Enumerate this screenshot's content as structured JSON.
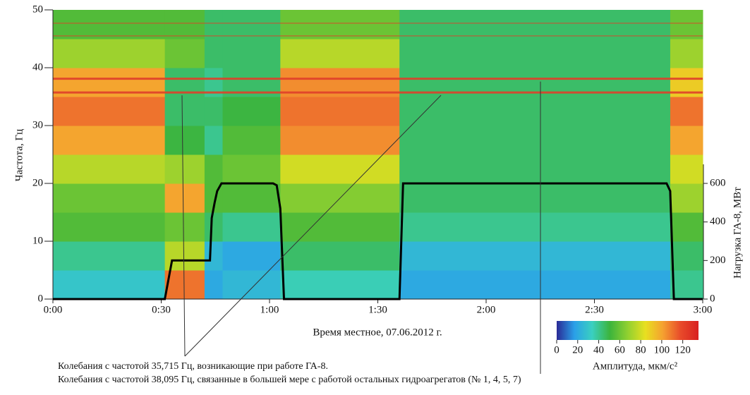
{
  "chart_data": {
    "type": "spectrogram",
    "ylabel": "Частота, Гц",
    "y2label": "Нагрузка ГА-8, МВт",
    "xlabel": "Время местное, 07.06.2012 г.",
    "xlim": [
      0,
      180
    ],
    "xticks": [
      {
        "value": 0,
        "label": "0:00"
      },
      {
        "value": 30,
        "label": "0:30"
      },
      {
        "value": 60,
        "label": "1:00"
      },
      {
        "value": 90,
        "label": "1:30"
      },
      {
        "value": 120,
        "label": "2:00"
      },
      {
        "value": 150,
        "label": "2:30"
      },
      {
        "value": 180,
        "label": "3:00"
      }
    ],
    "ylim": [
      0,
      50
    ],
    "yticks": [
      0,
      10,
      20,
      30,
      40,
      50
    ],
    "y2lim": [
      0,
      1500
    ],
    "y2ticks": [
      0,
      200,
      400,
      600
    ],
    "spectrogram": {
      "time_edges": [
        0,
        31,
        42,
        47,
        63,
        96,
        171,
        180
      ],
      "freq_edges": [
        0,
        5,
        10,
        15,
        20,
        25,
        30,
        35,
        40,
        45,
        50
      ],
      "amplitude": [
        [
          30,
          40,
          55,
          60,
          75,
          100,
          110,
          100,
          70,
          55
        ],
        [
          110,
          75,
          60,
          100,
          70,
          50,
          45,
          45,
          60,
          55
        ],
        [
          20,
          25,
          45,
          55,
          55,
          40,
          45,
          40,
          45,
          45
        ],
        [
          25,
          20,
          40,
          55,
          60,
          55,
          50,
          45,
          45,
          45
        ],
        [
          35,
          45,
          55,
          65,
          80,
          105,
          110,
          105,
          75,
          60
        ],
        [
          20,
          25,
          40,
          45,
          45,
          45,
          45,
          45,
          45,
          45
        ],
        [
          40,
          45,
          55,
          70,
          80,
          100,
          110,
          90,
          70,
          60
        ]
      ]
    },
    "lines": [
      35.715,
      38.095,
      45.5,
      47.7
    ],
    "line_color": "#e0402a",
    "x": [
      0,
      31,
      32,
      33,
      43.5,
      44,
      44.8,
      45.5,
      46.7,
      61,
      62,
      63,
      64,
      96,
      97,
      170,
      171,
      172,
      180
    ],
    "series": [
      {
        "color": "#000000",
        "axis": "y2",
        "values": [
          0,
          0,
          100,
          200,
          200,
          420,
          500,
          560,
          600,
          600,
          590,
          470,
          0,
          0,
          600,
          600,
          560,
          0,
          0
        ]
      }
    ],
    "colorbar": {
      "label": "Амплитуда, мкм/с²",
      "clim": [
        0,
        135
      ],
      "ticks": [
        0,
        20,
        40,
        60,
        80,
        100,
        120
      ],
      "colorscale": [
        "#2a2a96",
        "#2aa0e8",
        "#3ad0c0",
        "#3cb43c",
        "#90d030",
        "#e8e020",
        "#f5a030",
        "#e84a2a",
        "#d82020"
      ]
    },
    "annotations": [
      "Колебания с частотой 35,715 Гц, возникающие при работе ГА-8.",
      "Колебания с частотой 38,095 Гц, связанные в большей мере с работой остальных гидроагрегатов (№ 1, 4, 5, 7)"
    ]
  }
}
